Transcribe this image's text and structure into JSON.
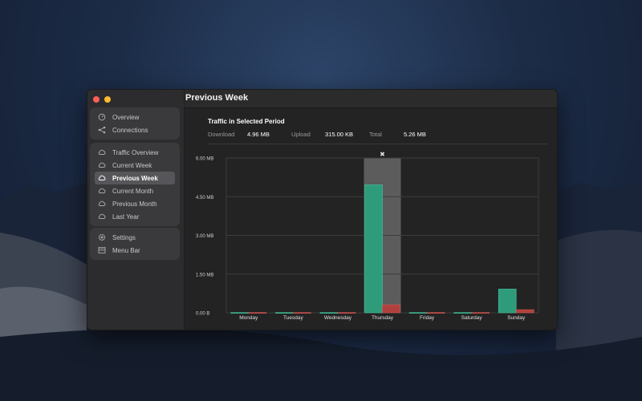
{
  "window": {
    "title": "Previous Week",
    "traffic_lights": [
      "#ff5f57",
      "#febc2e"
    ]
  },
  "sidebar": {
    "groups": [
      {
        "items": [
          {
            "label": "Overview",
            "icon": "gauge-icon"
          },
          {
            "label": "Connections",
            "icon": "share-icon"
          }
        ]
      },
      {
        "items": [
          {
            "label": "Traffic Overview",
            "icon": "cloud-icon"
          },
          {
            "label": "Current Week",
            "icon": "cloud-icon"
          },
          {
            "label": "Previous Week",
            "icon": "cloud-icon",
            "selected": true
          },
          {
            "label": "Current Month",
            "icon": "cloud-icon"
          },
          {
            "label": "Previous Month",
            "icon": "cloud-icon"
          },
          {
            "label": "Last Year",
            "icon": "cloud-icon"
          }
        ]
      },
      {
        "items": [
          {
            "label": "Settings",
            "icon": "gear-icon"
          },
          {
            "label": "Menu Bar",
            "icon": "menubar-icon"
          }
        ]
      }
    ]
  },
  "summary": {
    "title": "Traffic in Selected Period",
    "download_label": "Download",
    "download_value": "4.96 MB",
    "upload_label": "Upload",
    "upload_value": "315.00 KB",
    "total_label": "Total",
    "total_value": "5.26 MB"
  },
  "chart_data": {
    "type": "bar",
    "categories": [
      "Monday",
      "Tuesday",
      "Wednesday",
      "Thursday",
      "Friday",
      "Saturday",
      "Sunday"
    ],
    "series": [
      {
        "values": [
          0.01,
          0.01,
          0.01,
          4.96,
          0.01,
          0.01,
          0.92
        ],
        "color": "#2e9c7a"
      },
      {
        "values": [
          0.01,
          0.01,
          0.01,
          0.31,
          0.01,
          0.01,
          0.12
        ],
        "color": "#b0403d"
      }
    ],
    "ylim": [
      0,
      6
    ],
    "yticks": [
      0,
      1.5,
      3,
      4.5,
      6
    ],
    "ytick_labels": [
      "0.00 B",
      "1.50 MB",
      "3.00 MB",
      "4.50 MB",
      "6.00 MB"
    ],
    "highlighted": "Thursday",
    "grid": true
  }
}
